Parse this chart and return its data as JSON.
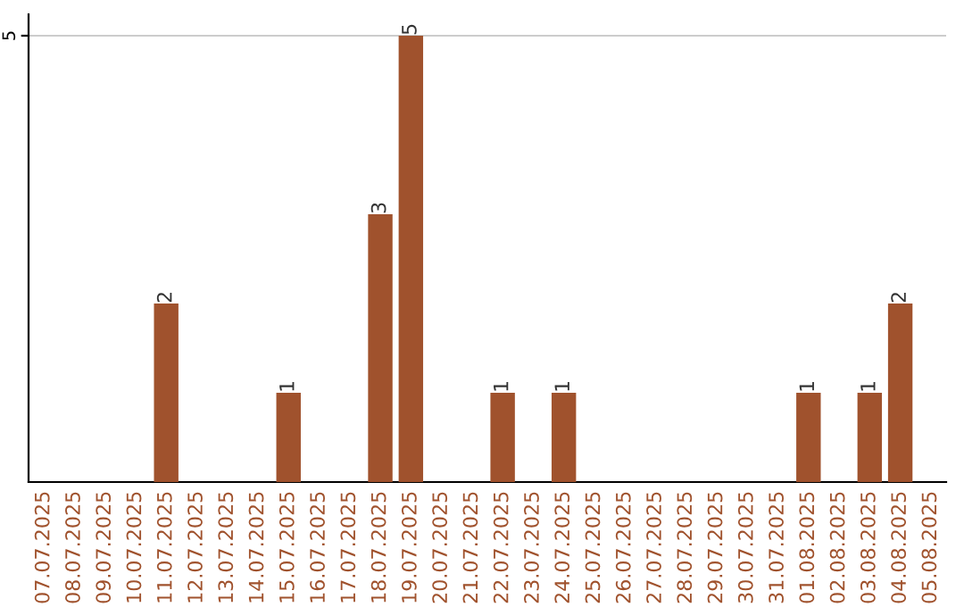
{
  "chart_data": {
    "type": "bar",
    "categories": [
      "07.07.2025",
      "08.07.2025",
      "09.07.2025",
      "10.07.2025",
      "11.07.2025",
      "12.07.2025",
      "13.07.2025",
      "14.07.2025",
      "15.07.2025",
      "16.07.2025",
      "17.07.2025",
      "18.07.2025",
      "19.07.2025",
      "20.07.2025",
      "21.07.2025",
      "22.07.2025",
      "23.07.2025",
      "24.07.2025",
      "25.07.2025",
      "26.07.2025",
      "27.07.2025",
      "28.07.2025",
      "29.07.2025",
      "30.07.2025",
      "31.07.2025",
      "01.08.2025",
      "02.08.2025",
      "03.08.2025",
      "04.08.2025",
      "05.08.2025"
    ],
    "values": [
      0,
      0,
      0,
      0,
      2,
      0,
      0,
      0,
      1,
      0,
      0,
      3,
      5,
      0,
      0,
      1,
      0,
      1,
      0,
      0,
      0,
      0,
      0,
      0,
      0,
      1,
      0,
      1,
      2,
      0
    ],
    "value_labels": [
      null,
      null,
      null,
      null,
      "2",
      null,
      null,
      null,
      "1",
      null,
      null,
      "3",
      "5",
      null,
      null,
      "1",
      null,
      "1",
      null,
      null,
      null,
      null,
      null,
      null,
      null,
      "1",
      null,
      "1",
      "2",
      null
    ],
    "color": "#a0522d",
    "ylim": [
      0,
      5.24
    ],
    "yticks": [
      5
    ],
    "grid": "y"
  }
}
